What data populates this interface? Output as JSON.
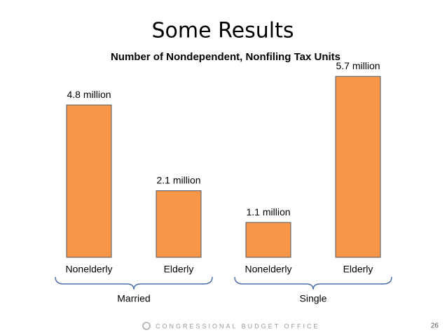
{
  "slide": {
    "title": "Some Results",
    "footer": "CONGRESSIONAL BUDGET OFFICE",
    "page": "26"
  },
  "chart_data": {
    "type": "bar",
    "title": "Number of Nondependent, Nonfiling Tax Units",
    "categories": [
      "Nonelderly",
      "Elderly",
      "Nonelderly",
      "Elderly"
    ],
    "values": [
      4.8,
      2.1,
      1.1,
      5.7
    ],
    "value_labels": [
      "4.8 million",
      "2.1 million",
      "1.1 million",
      "5.7 million"
    ],
    "groups": [
      "Married",
      "Single"
    ],
    "color": "#F79646"
  }
}
